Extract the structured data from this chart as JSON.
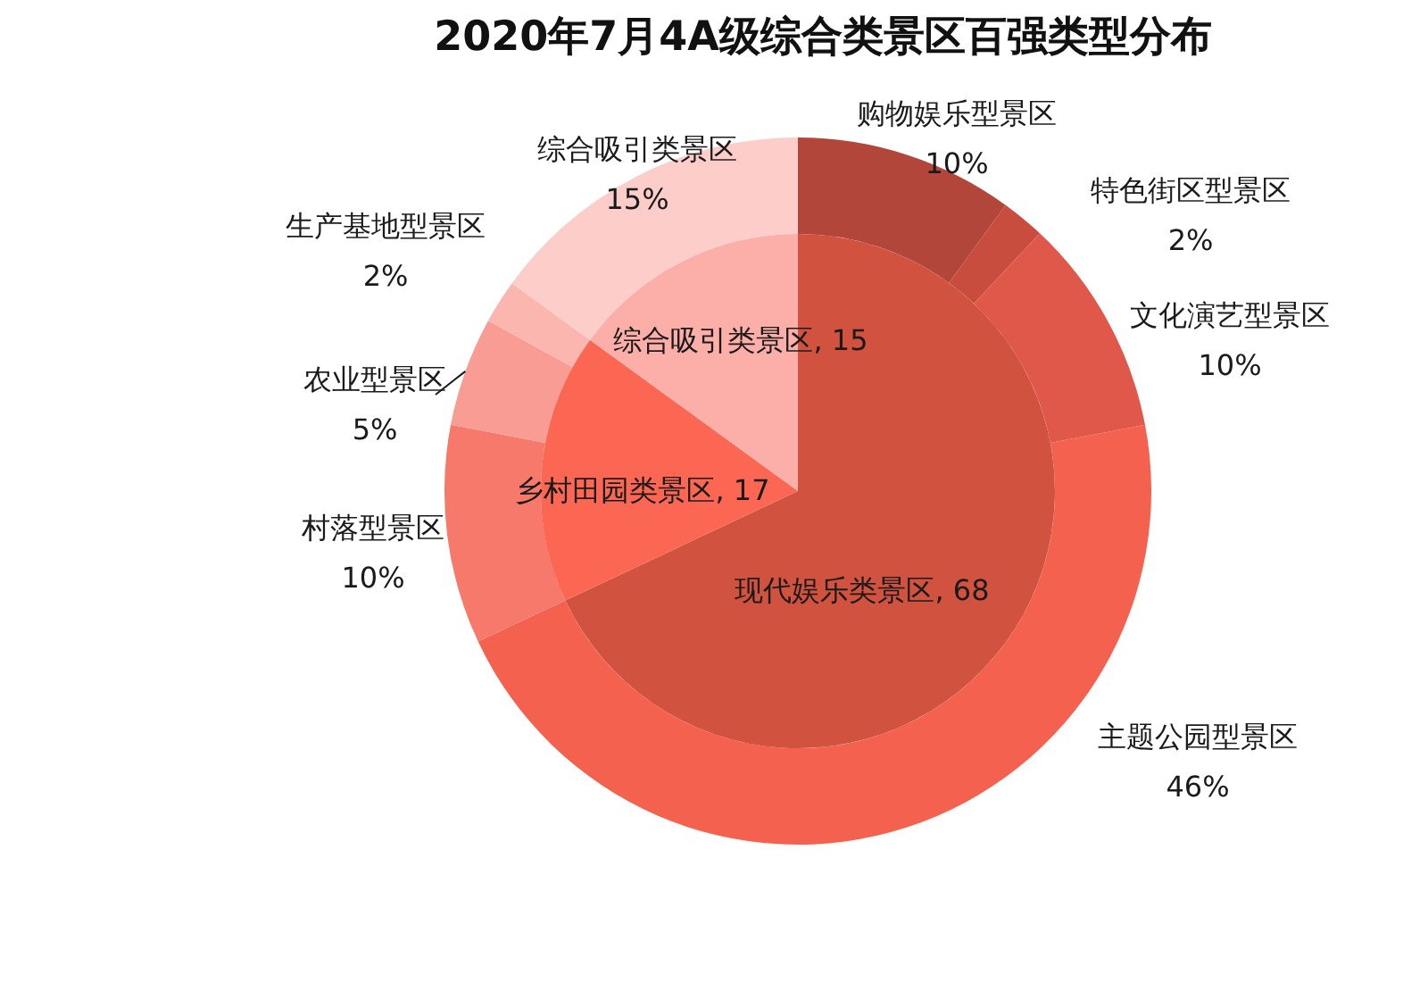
{
  "chart_data": [
    {
      "type": "donut",
      "title": "2020年7月4A级综合类景区百强类型分布",
      "categories": [
        "购物娱乐型景区",
        "特色街区型景区",
        "文化演艺型景区",
        "主题公园型景区",
        "村落型景区",
        "农业型景区",
        "生产基地型景区",
        "综合吸引类景区"
      ],
      "values": [
        10,
        2,
        10,
        46,
        10,
        5,
        2,
        15
      ],
      "colors": [
        "#b2463a",
        "#c84d3f",
        "#e0584a",
        "#f5614f",
        "#f7796c",
        "#f99c93",
        "#fbb6b0",
        "#fdcdca"
      ],
      "value_labels": [
        "10%",
        "2%",
        "10%",
        "46%",
        "10%",
        "5%",
        "2%",
        "15%"
      ]
    },
    {
      "type": "pie",
      "categories": [
        "现代娱乐类景区",
        "乡村田园类景区",
        "综合吸引类景区"
      ],
      "values": [
        68,
        17,
        15
      ],
      "colors": [
        "#d1533f",
        "#fb6752",
        "#fcaea8"
      ],
      "value_labels": [
        ", 68",
        ", 17",
        ", 15"
      ]
    }
  ]
}
